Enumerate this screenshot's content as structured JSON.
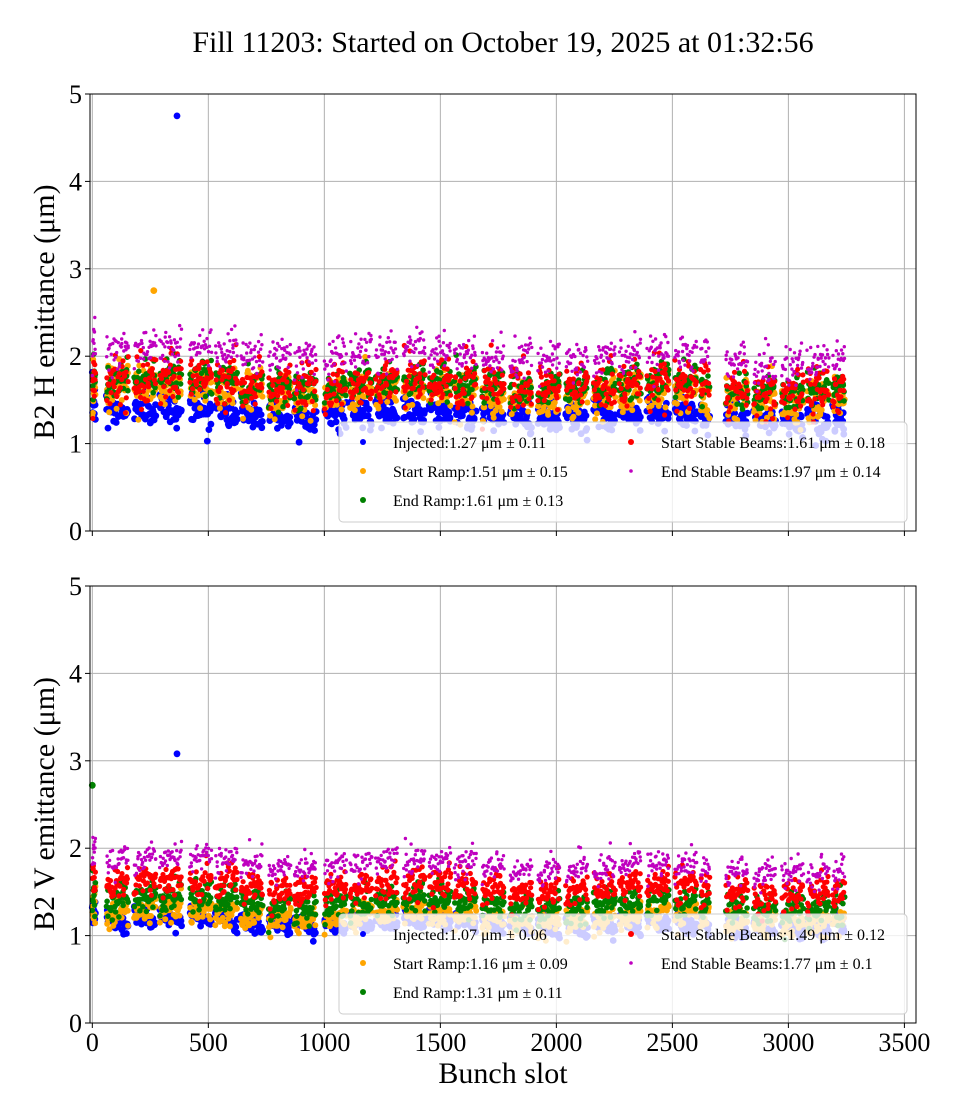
{
  "figure_title": "Fill 11203: Started on October 19, 2025 at 01:32:56",
  "chart_data": [
    {
      "type": "scatter",
      "ylabel": "B2 H emittance (μm)",
      "xlabel": "",
      "xlim": [
        -10,
        3550
      ],
      "ylim": [
        0,
        5
      ],
      "x_ticks": [
        "0",
        "500",
        "1000",
        "1500",
        "2000",
        "2500",
        "3000",
        "3500"
      ],
      "y_ticks": [
        "0",
        "1",
        "2",
        "3",
        "4",
        "5"
      ],
      "grid": true,
      "legend_position": "lower right",
      "series": [
        {
          "name": "Injected",
          "label": "Injected:1.27",
          "stat": "μm ± 0.11",
          "mean": 1.27,
          "std": 0.11,
          "color": "#0000ff"
        },
        {
          "name": "Start Ramp",
          "label": "Start Ramp:1.51",
          "stat": "μm ± 0.15",
          "mean": 1.51,
          "std": 0.15,
          "color": "#ffa500"
        },
        {
          "name": "End Ramp",
          "label": "End Ramp:1.61",
          "stat": "μm ± 0.13",
          "mean": 1.61,
          "std": 0.13,
          "color": "#008000"
        },
        {
          "name": "Start Stable Beams",
          "label": "Start Stable Beams:1.61",
          "stat": "μm ± 0.18",
          "mean": 1.61,
          "std": 0.18,
          "color": "#ff0000"
        },
        {
          "name": "End Stable Beams",
          "label": "End Stable Beams:1.97",
          "stat": "μm ± 0.14",
          "mean": 1.97,
          "std": 0.14,
          "color": "#bf00bf"
        }
      ],
      "outliers": [
        {
          "series": "Injected",
          "x": 365,
          "y": 4.75
        },
        {
          "series": "Start Ramp",
          "x": 265,
          "y": 2.75
        }
      ]
    },
    {
      "type": "scatter",
      "ylabel": "B2 V emittance (μm)",
      "xlabel": "Bunch slot",
      "xlim": [
        -10,
        3550
      ],
      "ylim": [
        0,
        5
      ],
      "x_ticks": [
        "0",
        "500",
        "1000",
        "1500",
        "2000",
        "2500",
        "3000",
        "3500"
      ],
      "y_ticks": [
        "0",
        "1",
        "2",
        "3",
        "4",
        "5"
      ],
      "grid": true,
      "legend_position": "lower right",
      "series": [
        {
          "name": "Injected",
          "label": "Injected:1.07",
          "stat": "μm ± 0.06",
          "mean": 1.07,
          "std": 0.06,
          "color": "#0000ff"
        },
        {
          "name": "Start Ramp",
          "label": "Start Ramp:1.16",
          "stat": "μm ± 0.09",
          "mean": 1.16,
          "std": 0.09,
          "color": "#ffa500"
        },
        {
          "name": "End Ramp",
          "label": "End Ramp:1.31",
          "stat": "μm ± 0.11",
          "mean": 1.31,
          "std": 0.11,
          "color": "#008000"
        },
        {
          "name": "Start Stable Beams",
          "label": "Start Stable Beams:1.49",
          "stat": "μm ± 0.12",
          "mean": 1.49,
          "std": 0.12,
          "color": "#ff0000"
        },
        {
          "name": "End Stable Beams",
          "label": "End Stable Beams:1.77",
          "stat": "μm ± 0.1",
          "mean": 1.77,
          "std": 0.1,
          "color": "#bf00bf"
        }
      ],
      "outliers": [
        {
          "series": "Injected",
          "x": 365,
          "y": 3.08
        },
        {
          "series": "End Ramp",
          "x": 0,
          "y": 2.72
        }
      ]
    }
  ],
  "bunch_trains": [
    [
      60,
      150
    ],
    [
      180,
      270
    ],
    [
      290,
      380
    ],
    [
      420,
      510
    ],
    [
      530,
      620
    ],
    [
      640,
      730
    ],
    [
      760,
      850
    ],
    [
      870,
      960
    ],
    [
      1000,
      1090
    ],
    [
      1110,
      1200
    ],
    [
      1220,
      1310
    ],
    [
      1340,
      1430
    ],
    [
      1450,
      1540
    ],
    [
      1560,
      1650
    ],
    [
      1680,
      1770
    ],
    [
      1800,
      1890
    ],
    [
      1920,
      2010
    ],
    [
      2040,
      2130
    ],
    [
      2160,
      2250
    ],
    [
      2270,
      2360
    ],
    [
      2390,
      2480
    ],
    [
      2510,
      2600
    ],
    [
      2620,
      2660
    ],
    [
      2730,
      2820
    ],
    [
      2850,
      2940
    ],
    [
      2970,
      3060
    ],
    [
      3080,
      3170
    ],
    [
      3190,
      3240
    ]
  ]
}
